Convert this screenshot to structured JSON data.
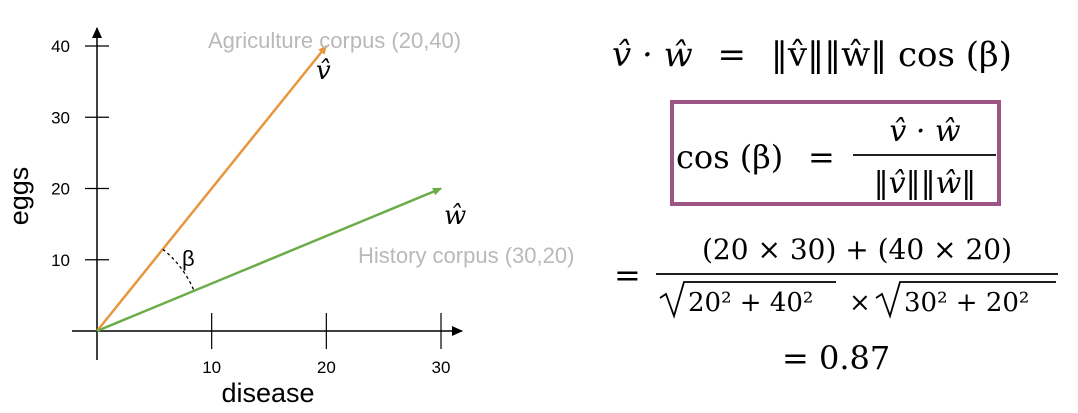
{
  "chart": {
    "xlabel": "disease",
    "ylabel": "eggs",
    "xticks": [
      10,
      20,
      30
    ],
    "yticks": [
      10,
      20,
      30,
      40
    ],
    "xlim": [
      0,
      30
    ],
    "ylim": [
      0,
      40
    ],
    "angle_label": "β",
    "vectors": [
      {
        "id": "agriculture",
        "label": "Agriculture corpus (20,40)",
        "symbol": "v̂",
        "x": 20,
        "y": 40,
        "color": "#e8963e"
      },
      {
        "id": "history",
        "label": "History corpus (30,20)",
        "symbol": "ŵ",
        "x": 30,
        "y": 20,
        "color": "#6aac48"
      }
    ]
  },
  "formulas": {
    "line1_left": "v̂ · ŵ",
    "line1_eq": "=",
    "line1_right": "‖v̂‖‖ŵ‖ cos (β)",
    "box_left": "cos (β)",
    "box_eq": "=",
    "box_num": "v̂ · ŵ",
    "box_den": "‖v̂‖‖ŵ‖",
    "box_color": "#9c5485",
    "step_eq": "=",
    "step_num": "(20 × 30) + (40 × 20)",
    "step_den_a": "20² + 40²",
    "step_times": "×",
    "step_den_b": "30² + 20²",
    "result": "= 0.87"
  }
}
